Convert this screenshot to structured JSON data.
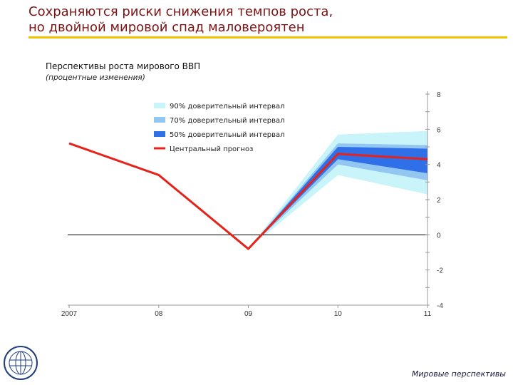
{
  "slide": {
    "title_line1": "Сохраняются риски снижения темпов роста,",
    "title_line2": "но двойной мировой спад маловероятен",
    "footer": "Мировые перспективы",
    "accent_color": "#f2c200",
    "title_color": "#7a1414",
    "logo_icon": "imf-seal-icon"
  },
  "chart_data": {
    "type": "line",
    "title": "Перспективы роста мирового ВВП",
    "subtitle": "(процентные изменения)",
    "x": [
      2007,
      2008,
      2009,
      2010,
      2011
    ],
    "x_tick_labels": [
      "2007",
      "08",
      "09",
      "10",
      "11"
    ],
    "ylim": [
      -4,
      8
    ],
    "y_ticks": [
      -4,
      -2,
      0,
      2,
      4,
      6,
      8
    ],
    "y_axis_side": "right",
    "series": [
      {
        "name": "Центральный прогноз",
        "values": [
          5.2,
          3.4,
          -0.8,
          4.6,
          4.3
        ],
        "color": "#e5231b"
      }
    ],
    "fan_bands": [
      {
        "name": "90% доверительный интервал",
        "color": "#c8f4fa",
        "start_x": 2009,
        "start_value": -0.8,
        "lower": [
          3.4,
          2.3
        ],
        "upper": [
          5.7,
          5.9
        ]
      },
      {
        "name": "70% доверительный интервал",
        "color": "#93c6f0",
        "start_x": 2009,
        "start_value": -0.8,
        "lower": [
          4.0,
          3.1
        ],
        "upper": [
          5.2,
          5.1
        ]
      },
      {
        "name": "50% доверительный интервал",
        "color": "#2f6fe8",
        "start_x": 2009,
        "start_value": -0.8,
        "lower": [
          4.3,
          3.5
        ],
        "upper": [
          5.0,
          4.9
        ]
      }
    ],
    "zero_line": true,
    "legend_position": "top-left",
    "grid": false
  }
}
